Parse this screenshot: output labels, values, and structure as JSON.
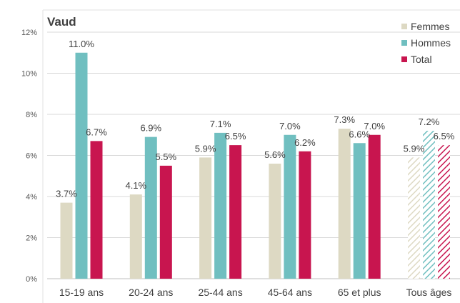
{
  "chart_data": {
    "type": "bar",
    "title": "Vaud",
    "categories": [
      "15-19 ans",
      "20-24 ans",
      "25-44 ans",
      "45-64 ans",
      "65 et plus",
      "Tous âges"
    ],
    "series": [
      {
        "name": "Femmes",
        "values": [
          3.7,
          4.1,
          5.9,
          5.6,
          7.3,
          5.9
        ],
        "color": "#ddd9c3"
      },
      {
        "name": "Hommes",
        "values": [
          11.0,
          6.9,
          7.1,
          7.0,
          6.6,
          7.2
        ],
        "color": "#70bfc0"
      },
      {
        "name": "Total",
        "values": [
          6.7,
          5.5,
          6.5,
          6.2,
          7.0,
          6.5
        ],
        "color": "#c8154f"
      }
    ],
    "value_labels": [
      [
        "3.7%",
        "4.1%",
        "5.9%",
        "5.6%",
        "7.3%",
        "5.9%"
      ],
      [
        "11.0%",
        "6.9%",
        "7.1%",
        "7.0%",
        "6.6%",
        "7.2%"
      ],
      [
        "6.7%",
        "5.5%",
        "6.5%",
        "6.2%",
        "7.0%",
        "6.5%"
      ]
    ],
    "ylim": [
      0,
      12
    ],
    "yticks": [
      0,
      2,
      4,
      6,
      8,
      10,
      12
    ],
    "ytick_labels": [
      "0%",
      "2%",
      "4%",
      "6%",
      "8%",
      "10%",
      "12%"
    ],
    "gridlines": true,
    "legend_position": "top-right",
    "hatched_category": "Tous âges"
  }
}
